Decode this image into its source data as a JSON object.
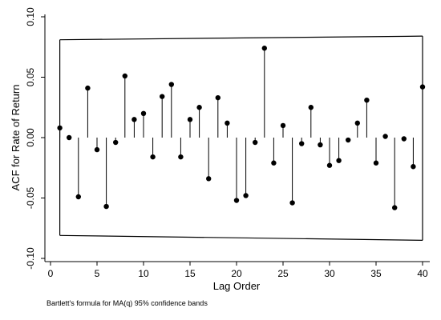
{
  "chart_data": {
    "type": "scatter",
    "subtype": "stem",
    "title": "",
    "xlabel": "Lag Order",
    "ylabel": "ACF for Rate of Return",
    "note": "Bartlett's formula for MA(q) 95% confidence bands",
    "xlim": [
      0,
      40
    ],
    "ylim": [
      -0.1,
      0.1
    ],
    "xticks": [
      0,
      5,
      10,
      15,
      20,
      25,
      30,
      35,
      40
    ],
    "yticks": [
      -0.1,
      -0.05,
      0.0,
      0.05,
      0.1
    ],
    "xtick_labels": [
      "0",
      "5",
      "10",
      "15",
      "20",
      "25",
      "30",
      "35",
      "40"
    ],
    "ytick_labels": [
      "-0.10",
      "-0.05",
      "0.00",
      "0.05",
      "0.10"
    ],
    "x": [
      1,
      2,
      3,
      4,
      5,
      6,
      7,
      8,
      9,
      10,
      11,
      12,
      13,
      14,
      15,
      16,
      17,
      18,
      19,
      20,
      21,
      22,
      23,
      24,
      25,
      26,
      27,
      28,
      29,
      30,
      31,
      32,
      33,
      34,
      35,
      36,
      37,
      38,
      39,
      40
    ],
    "values": [
      0.008,
      0.0,
      -0.049,
      0.041,
      -0.01,
      -0.057,
      -0.004,
      0.051,
      0.015,
      0.02,
      -0.016,
      0.034,
      0.044,
      -0.016,
      0.015,
      0.025,
      -0.034,
      0.033,
      0.012,
      -0.052,
      -0.048,
      -0.004,
      0.074,
      -0.021,
      0.01,
      -0.054,
      -0.005,
      0.025,
      -0.006,
      -0.023,
      -0.019,
      -0.002,
      0.012,
      0.031,
      -0.021,
      0.001,
      -0.058,
      -0.001,
      -0.024,
      0.042
    ],
    "confidence_band": {
      "upper": [
        0.081,
        0.084
      ],
      "lower": [
        -0.081,
        -0.085
      ],
      "x_range": [
        1,
        40
      ]
    },
    "grid": false,
    "legend": "none",
    "colors": {
      "marker": "#000000",
      "stem": "#000000",
      "band": "#000000",
      "axis": "#000000"
    }
  }
}
